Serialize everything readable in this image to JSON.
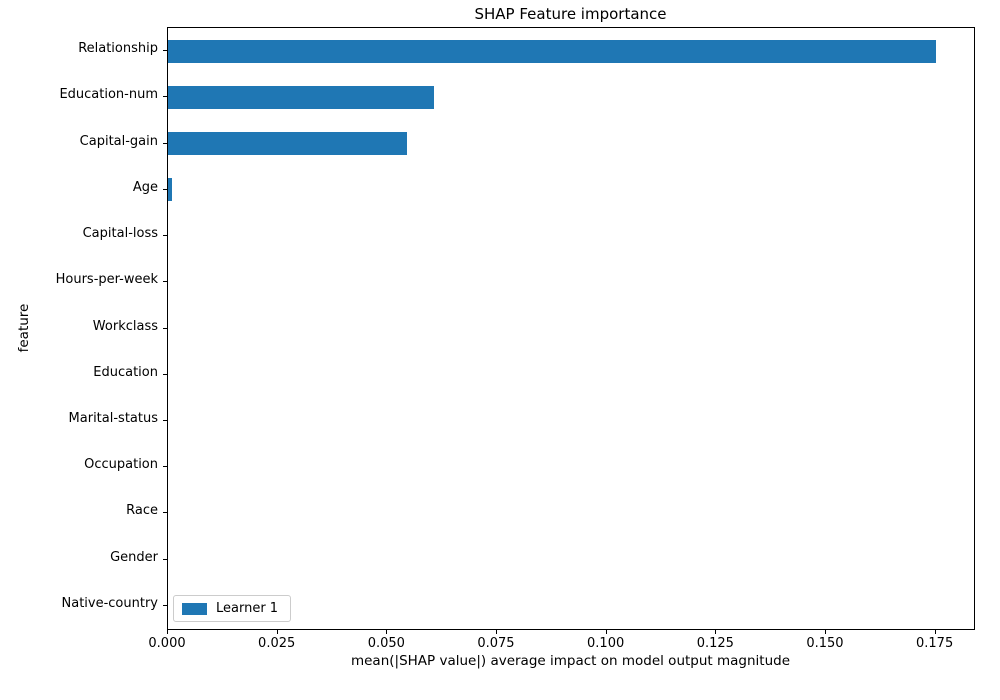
{
  "chart_data": {
    "type": "bar",
    "orientation": "horizontal",
    "title": "SHAP Feature importance",
    "xlabel": "mean(|SHAP value|) average impact on model output magnitude",
    "ylabel": "feature",
    "categories": [
      "Relationship",
      "Education-num",
      "Capital-gain",
      "Age",
      "Capital-loss",
      "Hours-per-week",
      "Workclass",
      "Education",
      "Marital-status",
      "Occupation",
      "Race",
      "Gender",
      "Native-country"
    ],
    "series": [
      {
        "name": "Learner 1",
        "color": "#1f77b4",
        "values": [
          0.175,
          0.0607,
          0.0545,
          0.0008,
          0,
          0,
          0,
          0,
          0,
          0,
          0,
          0,
          0
        ]
      }
    ],
    "xlim": [
      0,
      0.18375
    ],
    "xticks": [
      0.0,
      0.025,
      0.05,
      0.075,
      0.1,
      0.125,
      0.15,
      0.175
    ],
    "xtick_labels": [
      "0.000",
      "0.025",
      "0.050",
      "0.075",
      "0.100",
      "0.125",
      "0.150",
      "0.175"
    ],
    "legend_position": "lower left",
    "grid": false
  }
}
